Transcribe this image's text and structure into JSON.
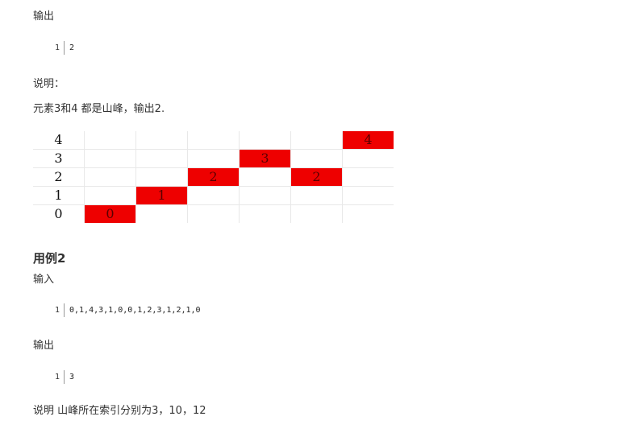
{
  "output1_label": "输出",
  "output1_code": {
    "line": "1",
    "text": "2"
  },
  "explain_label": "说明：",
  "explain_text": "元素3和4 都是山峰，输出2.",
  "grid": {
    "rows": [
      {
        "label": "4",
        "cells": [
          "",
          "",
          "",
          "",
          "",
          "4"
        ]
      },
      {
        "label": "3",
        "cells": [
          "",
          "",
          "",
          "3",
          "",
          ""
        ]
      },
      {
        "label": "2",
        "cells": [
          "",
          "",
          "2",
          "",
          "2",
          ""
        ]
      },
      {
        "label": "1",
        "cells": [
          "",
          "1",
          "",
          "",
          "",
          ""
        ]
      },
      {
        "label": "0",
        "cells": [
          "0",
          "",
          "",
          "",
          "",
          ""
        ]
      }
    ],
    "highlight_color": "#ee0000"
  },
  "example2_title": "用例2",
  "input_label": "输入",
  "input_code": {
    "line": "1",
    "text": "0,1,4,3,1,0,0,1,2,3,1,2,1,0"
  },
  "output2_label": "输出",
  "output2_code": {
    "line": "1",
    "text": "3"
  },
  "final_note": "说明 山峰所在索引分别为3，10，12"
}
